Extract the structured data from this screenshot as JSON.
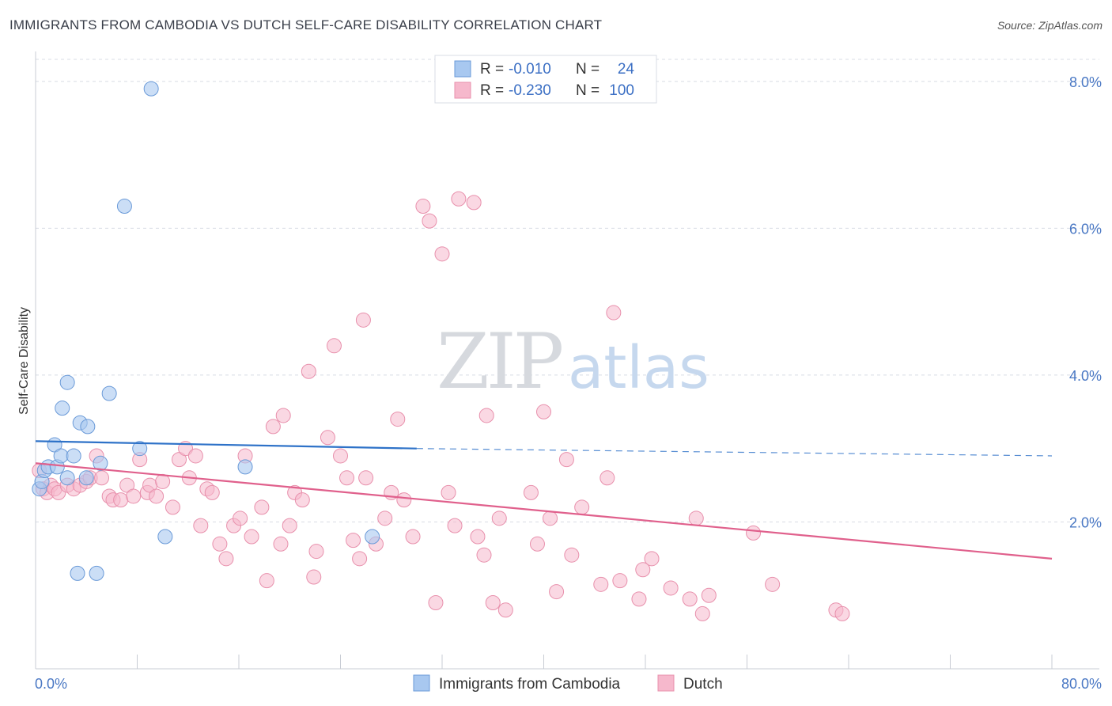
{
  "header": {
    "title": "IMMIGRANTS FROM CAMBODIA VS DUTCH SELF-CARE DISABILITY CORRELATION CHART",
    "source": "Source: ZipAtlas.com"
  },
  "legend": {
    "r_label": "R =",
    "n_label": "N =",
    "rows": [
      {
        "r": "-0.010",
        "n": "24",
        "color": "#a8c8f0"
      },
      {
        "r": "-0.230",
        "n": "100",
        "color": "#f6b8cc"
      }
    ]
  },
  "watermark": {
    "zip": "ZIP",
    "atlas": "atlas"
  },
  "colors": {
    "blue_fill": "#a8c8f0",
    "blue_stroke": "#6a9ad8",
    "blue_line": "#2e72c8",
    "pink_fill": "#f6b8cc",
    "pink_stroke": "#e890ac",
    "pink_line": "#e0608c",
    "grid": "#d8dce4",
    "axis": "#c8ccd4"
  },
  "chart_data": {
    "type": "scatter",
    "title": "IMMIGRANTS FROM CAMBODIA VS DUTCH SELF-CARE DISABILITY CORRELATION CHART",
    "ylabel": "Self-Care Disability",
    "xlim": [
      0,
      80
    ],
    "ylim": [
      0,
      8.3
    ],
    "x_tick_labels": [
      "0.0%",
      "80.0%"
    ],
    "y_ticks": [
      2,
      4,
      6,
      8
    ],
    "y_tick_labels": [
      "2.0%",
      "4.0%",
      "6.0%",
      "8.0%"
    ],
    "legend_placement": "top-center",
    "grid": true,
    "series": [
      {
        "name": "Immigrants from Cambodia",
        "color": "#a8c8f0",
        "trend": {
          "x0": 0,
          "y0": 3.1,
          "x1": 30,
          "y1": 3.0,
          "x_dash_end": 80,
          "y_dash_end": 2.9
        },
        "points": [
          [
            0.3,
            2.45
          ],
          [
            0.5,
            2.55
          ],
          [
            0.7,
            2.7
          ],
          [
            1.0,
            2.75
          ],
          [
            1.5,
            3.05
          ],
          [
            1.7,
            2.75
          ],
          [
            2.0,
            2.9
          ],
          [
            2.1,
            3.55
          ],
          [
            2.5,
            3.9
          ],
          [
            2.5,
            2.6
          ],
          [
            3.0,
            2.9
          ],
          [
            3.5,
            3.35
          ],
          [
            4.0,
            2.6
          ],
          [
            4.1,
            3.3
          ],
          [
            5.1,
            2.8
          ],
          [
            5.8,
            3.75
          ],
          [
            7.0,
            6.3
          ],
          [
            8.2,
            3.0
          ],
          [
            9.1,
            7.9
          ],
          [
            10.2,
            1.8
          ],
          [
            16.5,
            2.75
          ],
          [
            26.5,
            1.8
          ],
          [
            3.3,
            1.3
          ],
          [
            4.8,
            1.3
          ]
        ]
      },
      {
        "name": "Dutch",
        "color": "#f6b8cc",
        "trend": {
          "x0": 0,
          "y0": 2.8,
          "x1": 80,
          "y1": 1.5
        },
        "points": [
          [
            0.3,
            2.7
          ],
          [
            0.6,
            2.45
          ],
          [
            0.9,
            2.4
          ],
          [
            1.2,
            2.5
          ],
          [
            1.5,
            2.45
          ],
          [
            1.8,
            2.4
          ],
          [
            2.5,
            2.5
          ],
          [
            3.0,
            2.45
          ],
          [
            3.5,
            2.5
          ],
          [
            4.0,
            2.55
          ],
          [
            4.3,
            2.6
          ],
          [
            4.8,
            2.9
          ],
          [
            5.2,
            2.6
          ],
          [
            5.8,
            2.35
          ],
          [
            6.1,
            2.3
          ],
          [
            6.7,
            2.3
          ],
          [
            7.2,
            2.5
          ],
          [
            7.7,
            2.35
          ],
          [
            8.2,
            2.85
          ],
          [
            8.8,
            2.4
          ],
          [
            9.0,
            2.5
          ],
          [
            9.5,
            2.35
          ],
          [
            10.0,
            2.55
          ],
          [
            10.8,
            2.2
          ],
          [
            11.3,
            2.85
          ],
          [
            11.8,
            3.0
          ],
          [
            12.1,
            2.6
          ],
          [
            12.6,
            2.9
          ],
          [
            13.0,
            1.95
          ],
          [
            13.5,
            2.45
          ],
          [
            13.9,
            2.4
          ],
          [
            14.5,
            1.7
          ],
          [
            15.0,
            1.5
          ],
          [
            15.6,
            1.95
          ],
          [
            16.1,
            2.05
          ],
          [
            16.5,
            2.9
          ],
          [
            17.0,
            1.8
          ],
          [
            17.8,
            2.2
          ],
          [
            18.2,
            1.2
          ],
          [
            18.7,
            3.3
          ],
          [
            19.3,
            1.7
          ],
          [
            19.5,
            3.45
          ],
          [
            20.0,
            1.95
          ],
          [
            20.4,
            2.4
          ],
          [
            21.0,
            2.3
          ],
          [
            21.5,
            4.05
          ],
          [
            21.9,
            1.25
          ],
          [
            22.1,
            1.6
          ],
          [
            23.0,
            3.15
          ],
          [
            23.5,
            4.4
          ],
          [
            24.0,
            2.9
          ],
          [
            24.5,
            2.6
          ],
          [
            25.0,
            1.75
          ],
          [
            25.5,
            1.5
          ],
          [
            25.8,
            4.75
          ],
          [
            26.0,
            2.6
          ],
          [
            26.8,
            1.7
          ],
          [
            27.5,
            2.05
          ],
          [
            28.0,
            2.4
          ],
          [
            28.5,
            3.4
          ],
          [
            29.0,
            2.3
          ],
          [
            29.7,
            1.8
          ],
          [
            30.5,
            6.3
          ],
          [
            31.0,
            6.1
          ],
          [
            31.5,
            0.9
          ],
          [
            32.0,
            5.65
          ],
          [
            32.5,
            2.4
          ],
          [
            33.0,
            1.95
          ],
          [
            33.3,
            6.4
          ],
          [
            34.5,
            6.35
          ],
          [
            34.8,
            1.8
          ],
          [
            35.3,
            1.55
          ],
          [
            35.5,
            3.45
          ],
          [
            36.0,
            0.9
          ],
          [
            36.5,
            2.05
          ],
          [
            37.0,
            0.8
          ],
          [
            39.0,
            2.4
          ],
          [
            39.5,
            1.7
          ],
          [
            40.0,
            3.5
          ],
          [
            40.5,
            2.05
          ],
          [
            41.0,
            1.05
          ],
          [
            41.8,
            2.85
          ],
          [
            42.2,
            1.55
          ],
          [
            43.0,
            2.2
          ],
          [
            44.5,
            1.15
          ],
          [
            45.0,
            2.6
          ],
          [
            45.5,
            4.85
          ],
          [
            46.0,
            1.2
          ],
          [
            47.5,
            0.95
          ],
          [
            47.8,
            1.35
          ],
          [
            48.5,
            1.5
          ],
          [
            50.0,
            1.1
          ],
          [
            51.5,
            0.95
          ],
          [
            52.5,
            0.75
          ],
          [
            53.0,
            1.0
          ],
          [
            56.5,
            1.85
          ],
          [
            58.0,
            1.15
          ],
          [
            63.0,
            0.8
          ],
          [
            63.5,
            0.75
          ],
          [
            52.0,
            2.05
          ]
        ]
      }
    ]
  }
}
